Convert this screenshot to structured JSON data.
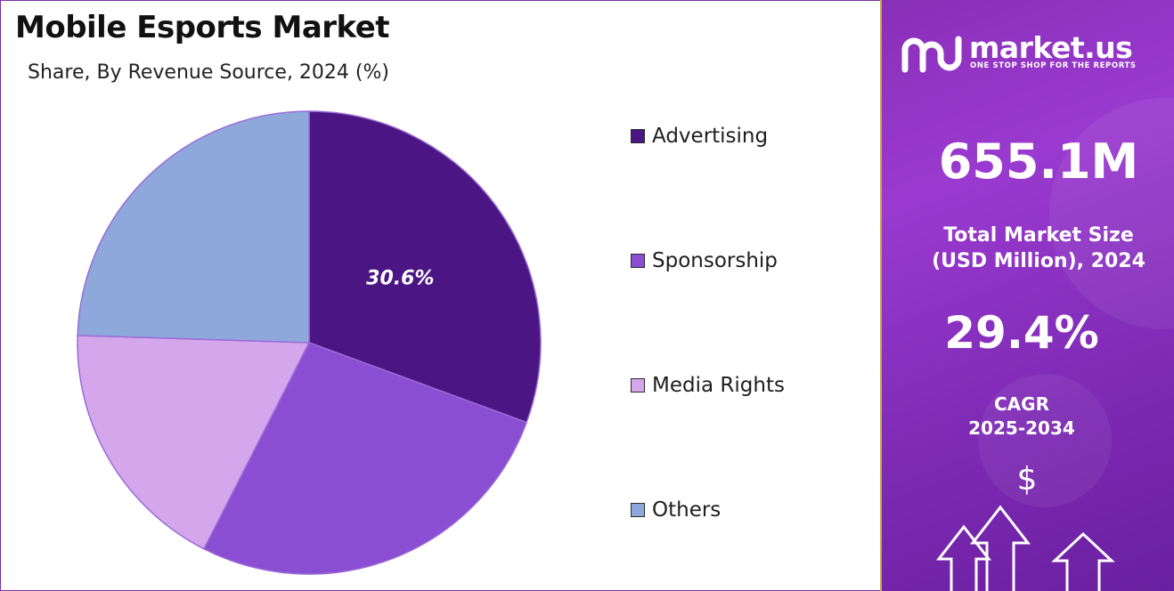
{
  "title": "Mobile Esports Market",
  "subtitle": "Share, By Revenue Source, 2024 (%)",
  "chart_data": {
    "type": "pie",
    "title": "Mobile Esports Market",
    "subtitle": "Share, By Revenue Source, 2024 (%)",
    "slices": [
      {
        "label": "Advertising",
        "value": 30.6,
        "color": "#4b1684",
        "data_label": "30.6%"
      },
      {
        "label": "Sponsorship",
        "value": 26.9,
        "color": "#8a4ed2",
        "data_label": ""
      },
      {
        "label": "Media Rights",
        "value": 18.0,
        "color": "#d4a7ec",
        "data_label": ""
      },
      {
        "label": "Others",
        "value": 24.5,
        "color": "#8ea8dc",
        "data_label": ""
      }
    ],
    "legend_position": "right"
  },
  "brand": {
    "name": "market.us",
    "tagline": "ONE STOP SHOP FOR THE REPORTS"
  },
  "stats": {
    "market_size_value": "655.1M",
    "market_size_label_line1": "Total Market Size",
    "market_size_label_line2": "(USD Million), 2024",
    "cagr_value": "29.4%",
    "cagr_label_line1": "CAGR",
    "cagr_label_line2": "2025-2034"
  },
  "icons": {
    "currency": "$",
    "arrow": "up-arrow-icon"
  },
  "colors": {
    "panel_bg": "#8a2fb8",
    "border": "#7b2fa8"
  }
}
